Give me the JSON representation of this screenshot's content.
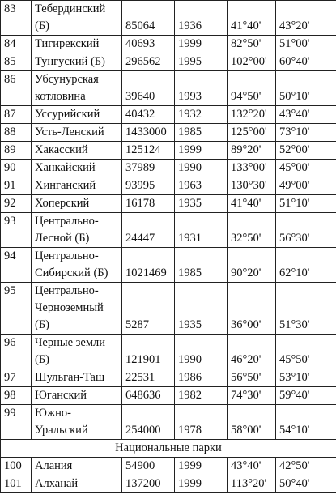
{
  "table": {
    "rows": [
      {
        "num": "83",
        "name": [
          "Тебердинский",
          "(Б)"
        ],
        "area": "85064",
        "year": "1936",
        "lat": "41°40'",
        "lon": "43°20'"
      },
      {
        "num": "84",
        "name": [
          "Тигирекский"
        ],
        "area": "40693",
        "year": "1999",
        "lat": "82°50'",
        "lon": "51°00'"
      },
      {
        "num": "85",
        "name": [
          "Тунгуский (Б)"
        ],
        "area": "296562",
        "year": "1995",
        "lat": "102°00'",
        "lon": "60°40'"
      },
      {
        "num": "86",
        "name": [
          "Убсунурская",
          "котловина"
        ],
        "area": "39640",
        "year": "1993",
        "lat": "94°50'",
        "lon": "50°10'"
      },
      {
        "num": "87",
        "name": [
          "Уссурийский"
        ],
        "area": "40432",
        "year": "1932",
        "lat": "132°20'",
        "lon": "43°40'"
      },
      {
        "num": "88",
        "name": [
          "Усть-Ленский"
        ],
        "area": "1433000",
        "year": "1985",
        "lat": "125°00'",
        "lon": "73°10'"
      },
      {
        "num": "89",
        "name": [
          "Хакасский"
        ],
        "area": "125124",
        "year": "1999",
        "lat": "89°20'",
        "lon": "52°00'"
      },
      {
        "num": "90",
        "name": [
          "Ханкайский"
        ],
        "area": "37989",
        "year": "1990",
        "lat": "133°00'",
        "lon": "45°00'"
      },
      {
        "num": "91",
        "name": [
          "Хинганский"
        ],
        "area": "93995",
        "year": "1963",
        "lat": "130°30'",
        "lon": "49°00'"
      },
      {
        "num": "92",
        "name": [
          "Хоперский"
        ],
        "area": "16178",
        "year": "1935",
        "lat": "41°40'",
        "lon": "51°10'"
      },
      {
        "num": "93",
        "name": [
          "Центрально-",
          "Лесной (Б)"
        ],
        "area": "24447",
        "year": "1931",
        "lat": "32°50'",
        "lon": "56°30'"
      },
      {
        "num": "94",
        "name": [
          "Центрально-",
          "Сибирский (Б)"
        ],
        "area": "1021469",
        "year": "1985",
        "lat": "90°20'",
        "lon": "62°10'"
      },
      {
        "num": "95",
        "name": [
          "Центрально-",
          "Черноземный",
          "(Б)"
        ],
        "area": "5287",
        "year": "1935",
        "lat": "36°00'",
        "lon": "51°30'"
      },
      {
        "num": "96",
        "name": [
          "Черные земли",
          "(Б)"
        ],
        "area": "121901",
        "year": "1990",
        "lat": "46°20'",
        "lon": "45°50'"
      },
      {
        "num": "97",
        "name": [
          "Шульган-Таш"
        ],
        "area": "22531",
        "year": "1986",
        "lat": "56°50'",
        "lon": "53°10'"
      },
      {
        "num": "98",
        "name": [
          "Юганский"
        ],
        "area": "648636",
        "year": "1982",
        "lat": "74°30'",
        "lon": "59°40'"
      },
      {
        "num": "99",
        "name": [
          "Южно-",
          "Уральский"
        ],
        "area": "254000",
        "year": "1978",
        "lat": "58°00'",
        "lon": "54°10'"
      },
      {
        "section": "Национальные парки"
      },
      {
        "num": "100",
        "name": [
          "Алания"
        ],
        "area": "54900",
        "year": "1999",
        "lat": "43°40'",
        "lon": "42°50'"
      },
      {
        "num": "101",
        "name": [
          "Алханай"
        ],
        "area": "137200",
        "year": "1999",
        "lat": "113°20'",
        "lon": "50°40'"
      }
    ]
  }
}
